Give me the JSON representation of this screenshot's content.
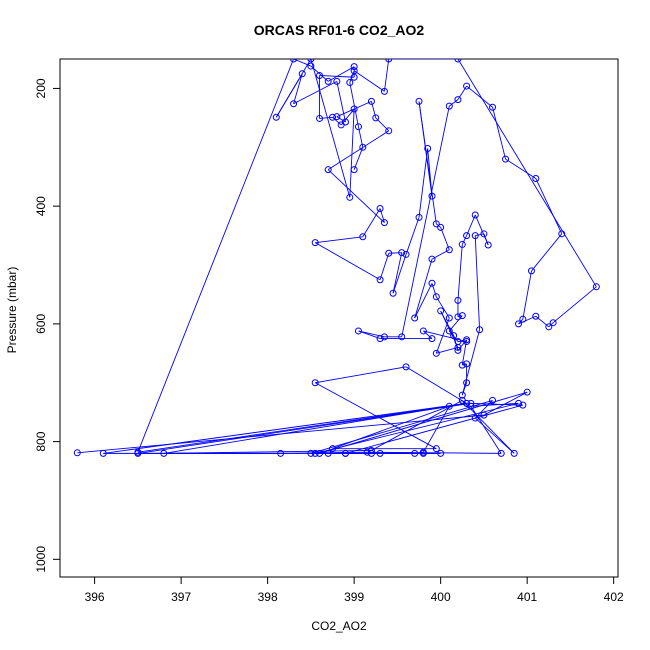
{
  "chart_data": {
    "type": "line",
    "title": "ORCAS RF01-6 CO2_AO2",
    "xlabel": "CO2_AO2",
    "ylabel": "Pressure (mbar)",
    "xlim": [
      395.6,
      402.05
    ],
    "ylim": [
      1030,
      150
    ],
    "y_reversed": true,
    "x_ticks": [
      396,
      397,
      398,
      399,
      400,
      401,
      402
    ],
    "y_ticks": [
      200,
      400,
      600,
      800,
      1000
    ],
    "grid": false,
    "legend": "none",
    "colors": {
      "series": "#0000ff",
      "axes": "#000000"
    },
    "series": [
      {
        "style": "line-with-points",
        "points": [
          [
            395.8,
            819
          ],
          [
            400.5,
            755
          ],
          [
            401.0,
            716
          ],
          [
            398.6,
            820
          ],
          [
            398.7,
            820
          ],
          [
            398.9,
            820
          ],
          [
            399.3,
            820
          ],
          [
            399.2,
            820
          ],
          [
            399.8,
            820
          ],
          [
            400.0,
            820
          ],
          [
            396.5,
            820
          ],
          [
            400.35,
            735
          ],
          [
            400.95,
            738
          ],
          [
            398.9,
            820
          ],
          [
            398.5,
            820
          ],
          [
            400.6,
            730
          ],
          [
            400.4,
            760
          ],
          [
            400.85,
            820
          ],
          [
            400.25,
            730
          ],
          [
            399.2,
            815
          ],
          [
            396.8,
            820
          ],
          [
            400.3,
            735
          ],
          [
            396.1,
            820
          ],
          [
            398.15,
            820
          ],
          [
            399.15,
            818
          ],
          [
            400.7,
            820
          ],
          [
            400.35,
            740
          ],
          [
            400.9,
            735
          ],
          [
            398.55,
            820
          ],
          [
            399.7,
            820
          ],
          [
            399.8,
            818
          ],
          [
            400.1,
            740
          ],
          [
            398.75,
            812
          ],
          [
            399.95,
            812
          ],
          [
            398.55,
            700
          ],
          [
            399.6,
            673
          ],
          [
            400.3,
            735
          ],
          [
            396.5,
            818
          ],
          [
            398.3,
            150
          ],
          [
            398.5,
            162
          ],
          [
            398.7,
            188
          ],
          [
            399.0,
            163
          ],
          [
            399.0,
            181
          ],
          [
            398.6,
            178
          ],
          [
            398.6,
            251
          ],
          [
            398.75,
            249
          ],
          [
            398.85,
            262
          ],
          [
            399.0,
            235
          ],
          [
            398.95,
            385
          ],
          [
            398.5,
            150
          ],
          [
            398.1,
            249
          ],
          [
            398.4,
            175
          ],
          [
            398.3,
            226
          ],
          [
            398.8,
            188
          ],
          [
            398.9,
            257
          ],
          [
            398.8,
            248
          ],
          [
            399.2,
            222
          ],
          [
            399.25,
            250
          ],
          [
            399.4,
            272
          ],
          [
            398.7,
            338
          ],
          [
            399.35,
            428
          ],
          [
            399.3,
            404
          ],
          [
            399.1,
            452
          ],
          [
            398.55,
            462
          ],
          [
            399.3,
            525
          ],
          [
            399.4,
            480
          ],
          [
            399.55,
            479
          ],
          [
            399.45,
            548
          ],
          [
            399.6,
            482
          ],
          [
            399.75,
            419
          ],
          [
            399.85,
            302
          ],
          [
            399.9,
            383
          ],
          [
            399.75,
            222
          ],
          [
            399.95,
            430
          ],
          [
            400.0,
            436
          ],
          [
            400.1,
            474
          ],
          [
            399.9,
            490
          ],
          [
            399.7,
            590
          ],
          [
            399.9,
            531
          ],
          [
            399.95,
            554
          ],
          [
            400.1,
            590
          ],
          [
            399.95,
            650
          ],
          [
            400.2,
            640
          ],
          [
            400.0,
            578
          ],
          [
            400.15,
            620
          ],
          [
            400.2,
            645
          ],
          [
            400.3,
            627
          ],
          [
            400.25,
            670
          ],
          [
            400.3,
            668
          ],
          [
            400.3,
            700
          ],
          [
            400.25,
            721
          ],
          [
            400.45,
            610
          ],
          [
            400.4,
            450
          ],
          [
            400.5,
            447
          ],
          [
            400.55,
            466
          ],
          [
            400.4,
            415
          ],
          [
            400.3,
            450
          ],
          [
            400.25,
            465
          ],
          [
            400.2,
            560
          ],
          [
            400.2,
            588
          ],
          [
            400.25,
            586
          ],
          [
            400.1,
            612
          ],
          [
            400.2,
            630
          ],
          [
            400.3,
            630
          ],
          [
            399.8,
            612
          ],
          [
            399.9,
            625
          ],
          [
            399.3,
            625
          ],
          [
            399.05,
            612
          ],
          [
            399.35,
            622
          ],
          [
            399.55,
            622
          ],
          [
            400.1,
            230
          ],
          [
            400.2,
            219
          ],
          [
            400.3,
            196
          ],
          [
            400.6,
            232
          ],
          [
            400.75,
            320
          ],
          [
            401.1,
            353
          ],
          [
            401.4,
            447
          ],
          [
            401.05,
            510
          ],
          [
            400.95,
            592
          ],
          [
            400.9,
            600
          ],
          [
            401.1,
            587
          ],
          [
            401.25,
            605
          ],
          [
            401.3,
            598
          ],
          [
            401.8,
            537
          ],
          [
            400.2,
            150
          ],
          [
            399.4,
            150
          ],
          [
            399.35,
            205
          ],
          [
            399.0,
            170
          ],
          [
            398.95,
            190
          ],
          [
            399.05,
            265
          ],
          [
            399.1,
            300
          ],
          [
            399.0,
            338
          ]
        ]
      }
    ]
  }
}
